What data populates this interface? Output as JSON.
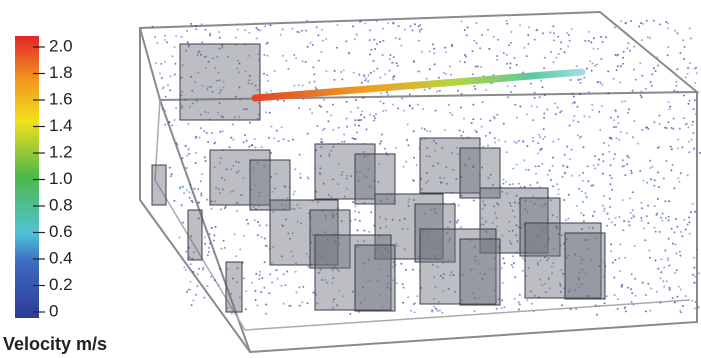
{
  "colorbar": {
    "label": "Velocity m/s",
    "range": [
      0,
      2
    ],
    "ticks": [
      0,
      0.2,
      0.4,
      0.6,
      0.8,
      {
        "value": 1,
        "label": "1.0"
      },
      1.2,
      1.4,
      1.6,
      1.8,
      {
        "value": 2,
        "label": "2.0"
      }
    ]
  }
}
